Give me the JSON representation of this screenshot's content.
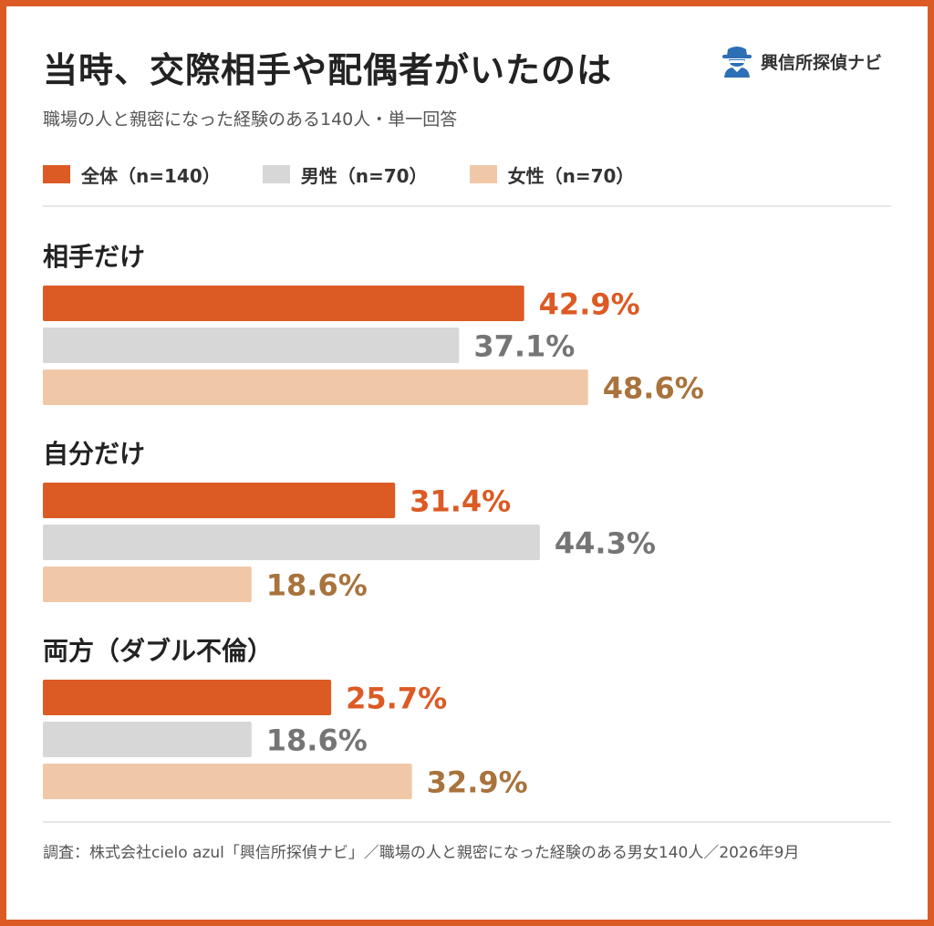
{
  "title": "当時、交際相手や配偶者がいたのは",
  "subtitle": "職場の人と親密になった経験のある140人・単一回答",
  "brand": {
    "name": "興信所探偵ナビ",
    "icon": "detective-icon"
  },
  "colors": {
    "frame": "#dc5a24",
    "all": "#dc5a24",
    "male": "#d7d7d7",
    "female": "#f0c8a8",
    "all_label": "#dc5a24",
    "male_label": "#757575",
    "female_label": "#a8733c"
  },
  "chart_data": {
    "type": "bar",
    "orientation": "horizontal",
    "unit": "%",
    "categories": [
      "相手だけ",
      "自分だけ",
      "両方（ダブル不倫）"
    ],
    "series": [
      {
        "name": "全体（n=140）",
        "values": [
          42.9,
          31.4,
          25.7
        ]
      },
      {
        "name": "男性（n=70）",
        "values": [
          37.1,
          44.3,
          18.6
        ]
      },
      {
        "name": "女性（n=70）",
        "values": [
          48.6,
          18.6,
          32.9
        ]
      }
    ],
    "xlim": [
      0,
      70
    ],
    "grid": false,
    "legend_position": "top-left"
  },
  "footer": "調査：株式会社cielo azul「興信所探偵ナビ」／職場の人と親密になった経験のある男女140人／2026年9月"
}
